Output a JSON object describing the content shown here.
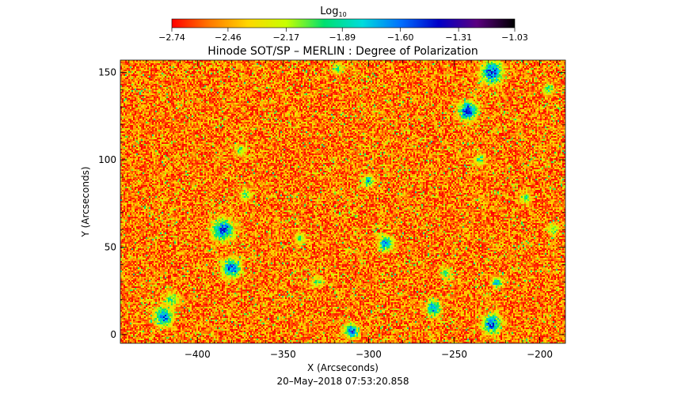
{
  "chart_data": {
    "type": "heatmap",
    "title": "Hinode SOT/SP – MERLIN : Degree of Polarization",
    "xlabel": "X (Arcseconds)",
    "ylabel": "Y (Arcseconds)",
    "footer": "20–May–2018 07:53:20.858",
    "xlim": [
      -445,
      -185
    ],
    "ylim": [
      -5,
      157
    ],
    "x_ticks": [
      -400,
      -350,
      -300,
      -250,
      -200
    ],
    "x_tick_labels": [
      "−400",
      "−350",
      "−300",
      "−250",
      "−200"
    ],
    "y_ticks": [
      0,
      50,
      100,
      150
    ],
    "y_tick_labels": [
      "0",
      "50",
      "100",
      "150"
    ],
    "colorbar": {
      "label": "Log",
      "label_sub": "10",
      "range": [
        -2.74,
        -1.03
      ],
      "tick_values": [
        -2.74,
        -2.46,
        -2.17,
        -1.89,
        -1.6,
        -1.31,
        -1.03
      ],
      "tick_labels": [
        "−2.74",
        "−2.46",
        "−2.17",
        "−1.89",
        "−1.60",
        "−1.31",
        "−1.03"
      ],
      "colors": [
        "#ff0000",
        "#ff7a00",
        "#ffd700",
        "#c8ff00",
        "#00e070",
        "#00dcdc",
        "#0070ff",
        "#0000c8",
        "#5a0080",
        "#000000"
      ]
    },
    "background_level": -2.55,
    "network_features": [
      {
        "x": -420,
        "y": 10,
        "r": 5,
        "level": -1.45
      },
      {
        "x": -415,
        "y": 20,
        "r": 4,
        "level": -1.9
      },
      {
        "x": -385,
        "y": 60,
        "r": 6,
        "level": -1.4
      },
      {
        "x": -380,
        "y": 38,
        "r": 5,
        "level": -1.35
      },
      {
        "x": -372,
        "y": 80,
        "r": 3,
        "level": -1.9
      },
      {
        "x": -375,
        "y": 105,
        "r": 3,
        "level": -1.9
      },
      {
        "x": -340,
        "y": 55,
        "r": 3,
        "level": -1.9
      },
      {
        "x": -330,
        "y": 30,
        "r": 3,
        "level": -1.95
      },
      {
        "x": -310,
        "y": 2,
        "r": 4,
        "level": -1.4
      },
      {
        "x": -300,
        "y": 88,
        "r": 3,
        "level": -1.7
      },
      {
        "x": -290,
        "y": 52,
        "r": 4,
        "level": -1.5
      },
      {
        "x": -262,
        "y": 15,
        "r": 4,
        "level": -1.5
      },
      {
        "x": -255,
        "y": 35,
        "r": 3,
        "level": -1.9
      },
      {
        "x": -242,
        "y": 128,
        "r": 5,
        "level": -1.25
      },
      {
        "x": -235,
        "y": 100,
        "r": 3,
        "level": -1.9
      },
      {
        "x": -228,
        "y": 150,
        "r": 6,
        "level": -1.35
      },
      {
        "x": -228,
        "y": 6,
        "r": 5,
        "level": -1.4
      },
      {
        "x": -225,
        "y": 30,
        "r": 3,
        "level": -1.6
      },
      {
        "x": -208,
        "y": 78,
        "r": 3,
        "level": -1.9
      },
      {
        "x": -195,
        "y": 140,
        "r": 3,
        "level": -1.9
      },
      {
        "x": -192,
        "y": 60,
        "r": 3,
        "level": -1.9
      },
      {
        "x": -318,
        "y": 152,
        "r": 3,
        "level": -1.9
      }
    ]
  }
}
